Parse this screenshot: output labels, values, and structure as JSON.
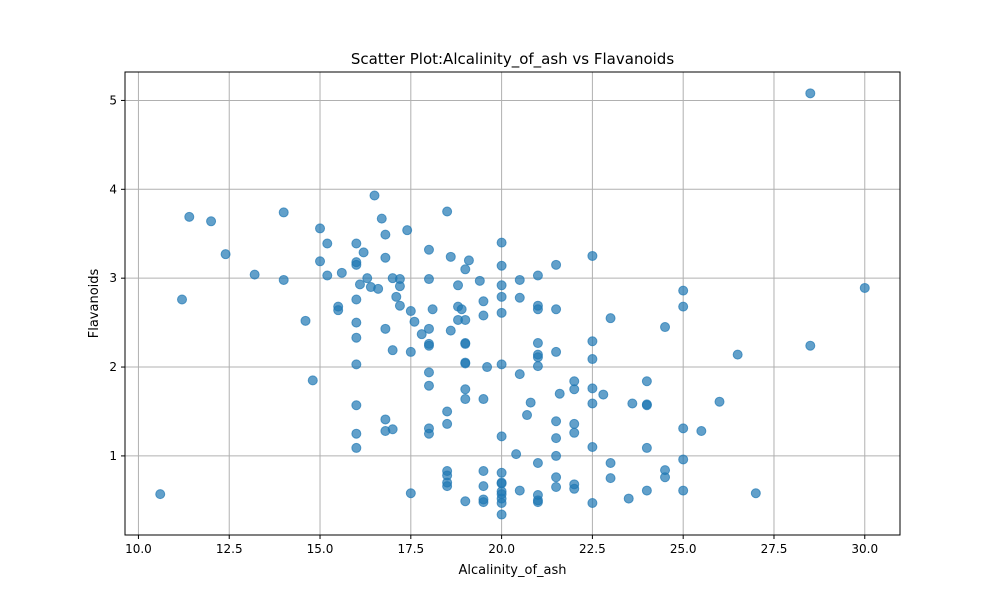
{
  "chart_data": {
    "type": "scatter",
    "title": "Scatter Plot:Alcalinity_of_ash vs Flavanoids",
    "xlabel": "Alcalinity_of_ash",
    "ylabel": "Flavanoids",
    "xlim": [
      9.63,
      30.97
    ],
    "ylim": [
      0.11,
      5.32
    ],
    "xticks": [
      10.0,
      12.5,
      15.0,
      17.5,
      20.0,
      22.5,
      25.0,
      27.5,
      30.0
    ],
    "xtick_labels": [
      "10.0",
      "12.5",
      "15.0",
      "17.5",
      "20.0",
      "22.5",
      "25.0",
      "27.5",
      "30.0"
    ],
    "yticks": [
      1,
      2,
      3,
      4,
      5
    ],
    "ytick_labels": [
      "1",
      "2",
      "3",
      "4",
      "5"
    ],
    "grid": true,
    "marker_color": "#1f77b4",
    "marker_alpha": 0.7,
    "points": [
      [
        10.6,
        0.57
      ],
      [
        11.2,
        2.76
      ],
      [
        11.4,
        3.69
      ],
      [
        12.0,
        3.64
      ],
      [
        12.4,
        3.27
      ],
      [
        13.2,
        3.04
      ],
      [
        14.0,
        3.74
      ],
      [
        14.0,
        2.98
      ],
      [
        14.6,
        2.52
      ],
      [
        14.8,
        1.85
      ],
      [
        15.0,
        3.56
      ],
      [
        15.0,
        3.19
      ],
      [
        15.2,
        3.39
      ],
      [
        15.2,
        3.03
      ],
      [
        15.5,
        2.68
      ],
      [
        15.5,
        2.64
      ],
      [
        15.6,
        3.06
      ],
      [
        16.0,
        3.39
      ],
      [
        16.0,
        3.18
      ],
      [
        16.0,
        3.15
      ],
      [
        16.0,
        2.76
      ],
      [
        16.0,
        2.5
      ],
      [
        16.0,
        2.33
      ],
      [
        16.0,
        2.03
      ],
      [
        16.0,
        1.57
      ],
      [
        16.0,
        1.25
      ],
      [
        16.0,
        1.09
      ],
      [
        16.1,
        2.93
      ],
      [
        16.2,
        3.29
      ],
      [
        16.3,
        3.0
      ],
      [
        16.4,
        2.9
      ],
      [
        16.5,
        3.93
      ],
      [
        16.6,
        2.88
      ],
      [
        16.7,
        3.67
      ],
      [
        16.8,
        3.49
      ],
      [
        16.8,
        3.23
      ],
      [
        16.8,
        2.43
      ],
      [
        16.8,
        1.41
      ],
      [
        16.8,
        1.28
      ],
      [
        17.0,
        3.0
      ],
      [
        17.0,
        2.19
      ],
      [
        17.0,
        1.3
      ],
      [
        17.1,
        2.79
      ],
      [
        17.2,
        2.99
      ],
      [
        17.2,
        2.91
      ],
      [
        17.2,
        2.69
      ],
      [
        17.4,
        3.54
      ],
      [
        17.5,
        2.63
      ],
      [
        17.5,
        2.17
      ],
      [
        17.5,
        0.58
      ],
      [
        17.6,
        2.51
      ],
      [
        17.8,
        2.37
      ],
      [
        18.0,
        3.32
      ],
      [
        18.0,
        2.99
      ],
      [
        18.0,
        2.43
      ],
      [
        18.0,
        2.26
      ],
      [
        18.0,
        2.24
      ],
      [
        18.0,
        1.94
      ],
      [
        18.0,
        1.79
      ],
      [
        18.0,
        1.31
      ],
      [
        18.0,
        1.25
      ],
      [
        18.1,
        2.65
      ],
      [
        18.5,
        3.75
      ],
      [
        18.5,
        1.5
      ],
      [
        18.5,
        1.36
      ],
      [
        18.5,
        0.83
      ],
      [
        18.5,
        0.78
      ],
      [
        18.5,
        0.7
      ],
      [
        18.5,
        0.66
      ],
      [
        18.6,
        3.24
      ],
      [
        18.6,
        2.41
      ],
      [
        18.8,
        2.92
      ],
      [
        18.8,
        2.68
      ],
      [
        18.8,
        2.53
      ],
      [
        18.9,
        2.65
      ],
      [
        19.0,
        3.1
      ],
      [
        19.0,
        2.53
      ],
      [
        19.0,
        2.27
      ],
      [
        19.0,
        2.26
      ],
      [
        19.0,
        2.05
      ],
      [
        19.0,
        2.04
      ],
      [
        19.0,
        1.75
      ],
      [
        19.0,
        1.64
      ],
      [
        19.0,
        0.49
      ],
      [
        19.1,
        3.2
      ],
      [
        19.4,
        2.97
      ],
      [
        19.5,
        2.74
      ],
      [
        19.5,
        2.58
      ],
      [
        19.5,
        1.64
      ],
      [
        19.5,
        0.83
      ],
      [
        19.5,
        0.66
      ],
      [
        19.5,
        0.51
      ],
      [
        19.5,
        0.48
      ],
      [
        19.6,
        2.0
      ],
      [
        20.0,
        3.4
      ],
      [
        20.0,
        3.14
      ],
      [
        20.0,
        2.92
      ],
      [
        20.0,
        2.79
      ],
      [
        20.0,
        2.61
      ],
      [
        20.0,
        2.03
      ],
      [
        20.0,
        1.22
      ],
      [
        20.0,
        0.81
      ],
      [
        20.0,
        0.7
      ],
      [
        20.0,
        0.69
      ],
      [
        20.0,
        0.6
      ],
      [
        20.0,
        0.57
      ],
      [
        20.0,
        0.52
      ],
      [
        20.0,
        0.47
      ],
      [
        20.0,
        0.34
      ],
      [
        20.4,
        1.02
      ],
      [
        20.5,
        2.98
      ],
      [
        20.5,
        2.78
      ],
      [
        20.5,
        1.92
      ],
      [
        20.5,
        0.61
      ],
      [
        20.7,
        1.46
      ],
      [
        20.8,
        1.6
      ],
      [
        21.0,
        3.03
      ],
      [
        21.0,
        2.69
      ],
      [
        21.0,
        2.65
      ],
      [
        21.0,
        2.27
      ],
      [
        21.0,
        2.14
      ],
      [
        21.0,
        2.11
      ],
      [
        21.0,
        2.01
      ],
      [
        21.0,
        0.92
      ],
      [
        21.0,
        0.56
      ],
      [
        21.0,
        0.5
      ],
      [
        21.0,
        0.48
      ],
      [
        21.5,
        3.15
      ],
      [
        21.5,
        2.65
      ],
      [
        21.5,
        2.17
      ],
      [
        21.5,
        1.39
      ],
      [
        21.5,
        1.2
      ],
      [
        21.5,
        1.0
      ],
      [
        21.5,
        0.76
      ],
      [
        21.5,
        0.65
      ],
      [
        21.6,
        1.7
      ],
      [
        22.0,
        1.84
      ],
      [
        22.0,
        1.75
      ],
      [
        22.0,
        1.36
      ],
      [
        22.0,
        1.26
      ],
      [
        22.0,
        0.68
      ],
      [
        22.0,
        0.63
      ],
      [
        22.5,
        3.25
      ],
      [
        22.5,
        2.29
      ],
      [
        22.5,
        2.09
      ],
      [
        22.5,
        1.76
      ],
      [
        22.5,
        1.59
      ],
      [
        22.5,
        1.1
      ],
      [
        22.5,
        0.47
      ],
      [
        22.8,
        1.69
      ],
      [
        23.0,
        2.55
      ],
      [
        23.0,
        0.92
      ],
      [
        23.0,
        0.75
      ],
      [
        23.5,
        0.52
      ],
      [
        23.6,
        1.59
      ],
      [
        24.0,
        1.84
      ],
      [
        24.0,
        1.58
      ],
      [
        24.0,
        1.57
      ],
      [
        24.0,
        1.09
      ],
      [
        24.0,
        0.61
      ],
      [
        24.5,
        2.45
      ],
      [
        24.5,
        0.84
      ],
      [
        24.5,
        0.76
      ],
      [
        25.0,
        2.86
      ],
      [
        25.0,
        2.68
      ],
      [
        25.0,
        1.31
      ],
      [
        25.0,
        0.96
      ],
      [
        25.0,
        0.61
      ],
      [
        25.5,
        1.28
      ],
      [
        26.0,
        1.61
      ],
      [
        26.5,
        2.14
      ],
      [
        27.0,
        0.58
      ],
      [
        28.5,
        5.08
      ],
      [
        28.5,
        2.24
      ],
      [
        30.0,
        2.89
      ]
    ]
  }
}
